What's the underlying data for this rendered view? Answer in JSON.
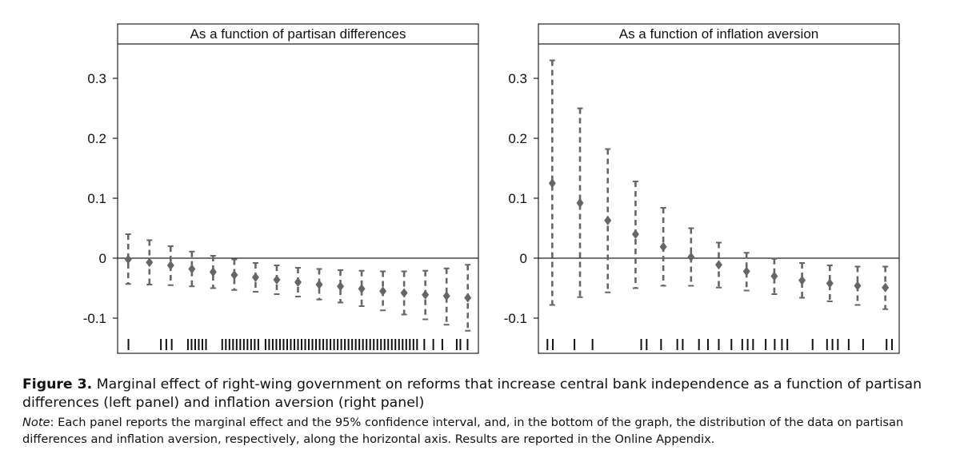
{
  "chart_data": [
    {
      "type": "scatter",
      "title": "As a function of partisan differences",
      "xlabel": "",
      "ylabel": "",
      "ylim": [
        -0.15,
        0.36
      ],
      "yticks": [
        0.3,
        0.2,
        0.1,
        0,
        -0.1
      ],
      "ytick_labels": [
        "0.3",
        "0.2",
        "0.1",
        "0",
        "-0.1"
      ],
      "reference_line": 0,
      "series": [
        {
          "name": "marginal effect (95% CI)",
          "x": [
            1,
            2,
            3,
            4,
            5,
            6,
            7,
            8,
            9,
            10,
            11,
            12,
            13,
            14,
            15,
            16,
            17
          ],
          "estimate": [
            -0.002,
            -0.007,
            -0.012,
            -0.018,
            -0.023,
            -0.028,
            -0.032,
            -0.036,
            -0.04,
            -0.044,
            -0.047,
            -0.051,
            -0.055,
            -0.058,
            -0.061,
            -0.063,
            -0.066
          ],
          "ci_low": [
            -0.043,
            -0.044,
            -0.045,
            -0.047,
            -0.05,
            -0.053,
            -0.056,
            -0.06,
            -0.064,
            -0.069,
            -0.074,
            -0.08,
            -0.087,
            -0.094,
            -0.102,
            -0.111,
            -0.121
          ],
          "ci_high": [
            0.04,
            0.03,
            0.02,
            0.011,
            0.004,
            -0.002,
            -0.008,
            -0.012,
            -0.016,
            -0.018,
            -0.02,
            -0.021,
            -0.022,
            -0.022,
            -0.021,
            -0.017,
            -0.011
          ]
        }
      ],
      "rug": [
        0.03,
        0.12,
        0.135,
        0.15,
        0.195,
        0.205,
        0.215,
        0.225,
        0.235,
        0.245,
        0.29,
        0.3,
        0.31,
        0.32,
        0.33,
        0.34,
        0.35,
        0.36,
        0.37,
        0.38,
        0.39,
        0.41,
        0.42,
        0.43,
        0.44,
        0.45,
        0.46,
        0.47,
        0.48,
        0.49,
        0.5,
        0.51,
        0.52,
        0.53,
        0.54,
        0.55,
        0.56,
        0.57,
        0.58,
        0.59,
        0.6,
        0.61,
        0.62,
        0.63,
        0.64,
        0.65,
        0.66,
        0.67,
        0.68,
        0.69,
        0.7,
        0.71,
        0.72,
        0.73,
        0.74,
        0.75,
        0.76,
        0.77,
        0.78,
        0.79,
        0.8,
        0.81,
        0.82,
        0.83,
        0.85,
        0.875,
        0.9,
        0.94,
        0.95,
        0.97
      ]
    },
    {
      "type": "scatter",
      "title": "As a function of inflation aversion",
      "xlabel": "",
      "ylabel": "",
      "ylim": [
        -0.15,
        0.36
      ],
      "yticks": [
        0.3,
        0.2,
        0.1,
        0,
        -0.1
      ],
      "ytick_labels": [
        "0.3",
        "0.2",
        "0.1",
        "0",
        "-0.1"
      ],
      "reference_line": 0,
      "series": [
        {
          "name": "marginal effect (95% CI)",
          "x": [
            1,
            2,
            3,
            4,
            5,
            6,
            7,
            8,
            9,
            10,
            11,
            12,
            13
          ],
          "estimate": [
            0.125,
            0.092,
            0.063,
            0.04,
            0.019,
            0.002,
            -0.011,
            -0.022,
            -0.03,
            -0.037,
            -0.042,
            -0.046,
            -0.049
          ],
          "ci_low": [
            -0.078,
            -0.065,
            -0.057,
            -0.05,
            -0.046,
            -0.046,
            -0.049,
            -0.054,
            -0.06,
            -0.066,
            -0.072,
            -0.078,
            -0.085
          ],
          "ci_high": [
            0.33,
            0.25,
            0.182,
            0.128,
            0.084,
            0.05,
            0.026,
            0.009,
            -0.001,
            -0.008,
            -0.012,
            -0.014,
            -0.014
          ]
        }
      ],
      "rug": [
        0.025,
        0.04,
        0.1,
        0.15,
        0.285,
        0.3,
        0.34,
        0.385,
        0.4,
        0.445,
        0.47,
        0.5,
        0.535,
        0.565,
        0.58,
        0.595,
        0.63,
        0.655,
        0.675,
        0.69,
        0.76,
        0.8,
        0.815,
        0.83,
        0.86,
        0.9,
        0.965,
        0.98
      ]
    }
  ],
  "caption": {
    "label": "Figure 3.",
    "text": "Marginal effect of right-wing government on reforms that increase central bank independence as a function of partisan differences (left panel) and inflation aversion (right panel)",
    "note_label": "Note",
    "note_text": ": Each panel reports the marginal effect and the 95% confidence interval, and, in the bottom of the graph, the distribution of the data on partisan differences and inflation aversion, respectively, along the horizontal axis. Results are reported in the Online Appendix."
  }
}
